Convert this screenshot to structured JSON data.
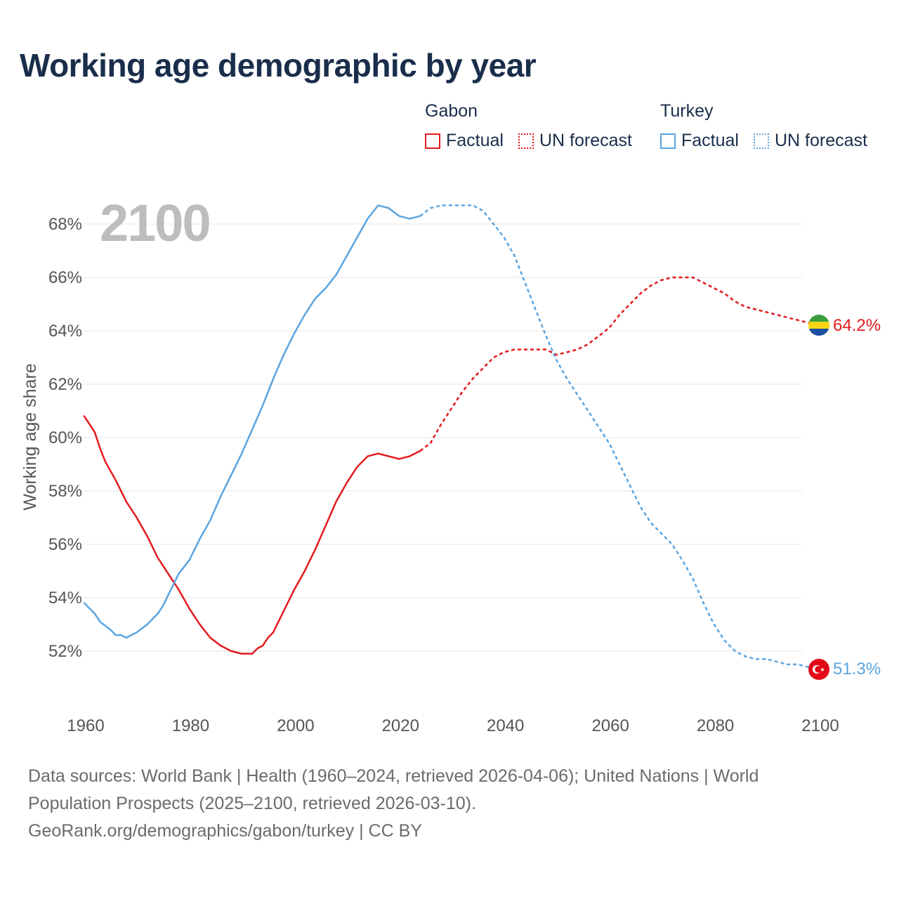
{
  "title": "Working age demographic by year",
  "year_label": "2100",
  "legend": {
    "groups": [
      {
        "name": "Gabon",
        "color": "#e31a1c",
        "factual_label": "Factual",
        "forecast_label": "UN forecast"
      },
      {
        "name": "Turkey",
        "color": "#5aa4e0",
        "factual_label": "Factual",
        "forecast_label": "UN forecast"
      }
    ]
  },
  "sources": {
    "line1": "Data sources: World Bank | Health (1960–2024, retrieved 2026-04-06); United Nations | World Population Prospects (2025–2100, retrieved 2026-03-10).",
    "line2": "GeoRank.org/demographics/gabon/turkey | CC BY"
  },
  "chart_data": {
    "type": "line",
    "title": "Working age demographic by year",
    "xlabel": "",
    "ylabel": "Working age share",
    "xlim": [
      1960,
      2100
    ],
    "ylim": [
      50.5,
      69.5
    ],
    "x_ticks": [
      1960,
      1980,
      2000,
      2020,
      2040,
      2060,
      2080,
      2100
    ],
    "y_ticks": [
      52,
      54,
      56,
      58,
      60,
      62,
      64,
      66,
      68
    ],
    "y_tick_labels": [
      "52%",
      "54%",
      "56%",
      "58%",
      "60%",
      "62%",
      "64%",
      "66%",
      "68%"
    ],
    "grid": true,
    "factual_end_year": 2024,
    "series": [
      {
        "name": "Gabon",
        "color": "#e31a1c",
        "end_label": "64.2%",
        "flag": "gabon-flag",
        "points": [
          [
            1960,
            60.8
          ],
          [
            1962,
            60.2
          ],
          [
            1963,
            59.6
          ],
          [
            1964,
            59.1
          ],
          [
            1966,
            58.4
          ],
          [
            1968,
            57.6
          ],
          [
            1970,
            57.0
          ],
          [
            1972,
            56.3
          ],
          [
            1974,
            55.5
          ],
          [
            1976,
            54.9
          ],
          [
            1978,
            54.3
          ],
          [
            1980,
            53.6
          ],
          [
            1982,
            53.0
          ],
          [
            1984,
            52.5
          ],
          [
            1986,
            52.2
          ],
          [
            1988,
            52.0
          ],
          [
            1990,
            51.9
          ],
          [
            1992,
            51.9
          ],
          [
            1993,
            52.1
          ],
          [
            1994,
            52.2
          ],
          [
            1995,
            52.5
          ],
          [
            1996,
            52.7
          ],
          [
            1998,
            53.5
          ],
          [
            2000,
            54.3
          ],
          [
            2002,
            55.0
          ],
          [
            2004,
            55.8
          ],
          [
            2006,
            56.7
          ],
          [
            2008,
            57.6
          ],
          [
            2010,
            58.3
          ],
          [
            2012,
            58.9
          ],
          [
            2014,
            59.3
          ],
          [
            2016,
            59.4
          ],
          [
            2018,
            59.3
          ],
          [
            2020,
            59.2
          ],
          [
            2022,
            59.3
          ],
          [
            2024,
            59.5
          ],
          [
            2026,
            59.8
          ],
          [
            2028,
            60.5
          ],
          [
            2030,
            61.1
          ],
          [
            2032,
            61.7
          ],
          [
            2034,
            62.2
          ],
          [
            2036,
            62.6
          ],
          [
            2038,
            63.0
          ],
          [
            2040,
            63.2
          ],
          [
            2042,
            63.3
          ],
          [
            2044,
            63.3
          ],
          [
            2046,
            63.3
          ],
          [
            2048,
            63.3
          ],
          [
            2050,
            63.1
          ],
          [
            2052,
            63.2
          ],
          [
            2054,
            63.3
          ],
          [
            2056,
            63.5
          ],
          [
            2058,
            63.8
          ],
          [
            2060,
            64.1
          ],
          [
            2062,
            64.6
          ],
          [
            2064,
            65.0
          ],
          [
            2066,
            65.4
          ],
          [
            2068,
            65.7
          ],
          [
            2070,
            65.9
          ],
          [
            2072,
            66.0
          ],
          [
            2074,
            66.0
          ],
          [
            2076,
            66.0
          ],
          [
            2078,
            65.8
          ],
          [
            2080,
            65.6
          ],
          [
            2082,
            65.4
          ],
          [
            2084,
            65.1
          ],
          [
            2086,
            64.9
          ],
          [
            2088,
            64.8
          ],
          [
            2090,
            64.7
          ],
          [
            2092,
            64.6
          ],
          [
            2094,
            64.5
          ],
          [
            2096,
            64.4
          ],
          [
            2098,
            64.3
          ],
          [
            2100,
            64.2
          ]
        ]
      },
      {
        "name": "Turkey",
        "color": "#5aa4e0",
        "end_label": "51.3%",
        "flag": "turkey-flag",
        "points": [
          [
            1960,
            53.8
          ],
          [
            1962,
            53.4
          ],
          [
            1963,
            53.1
          ],
          [
            1965,
            52.8
          ],
          [
            1966,
            52.6
          ],
          [
            1967,
            52.6
          ],
          [
            1968,
            52.5
          ],
          [
            1970,
            52.7
          ],
          [
            1972,
            53.0
          ],
          [
            1974,
            53.4
          ],
          [
            1975,
            53.7
          ],
          [
            1976,
            54.1
          ],
          [
            1978,
            54.9
          ],
          [
            1980,
            55.4
          ],
          [
            1982,
            56.2
          ],
          [
            1984,
            56.9
          ],
          [
            1986,
            57.8
          ],
          [
            1988,
            58.6
          ],
          [
            1990,
            59.4
          ],
          [
            1992,
            60.3
          ],
          [
            1994,
            61.2
          ],
          [
            1996,
            62.2
          ],
          [
            1998,
            63.1
          ],
          [
            2000,
            63.9
          ],
          [
            2002,
            64.6
          ],
          [
            2004,
            65.2
          ],
          [
            2006,
            65.6
          ],
          [
            2008,
            66.1
          ],
          [
            2010,
            66.8
          ],
          [
            2012,
            67.5
          ],
          [
            2014,
            68.2
          ],
          [
            2016,
            68.7
          ],
          [
            2018,
            68.6
          ],
          [
            2020,
            68.3
          ],
          [
            2022,
            68.2
          ],
          [
            2024,
            68.3
          ],
          [
            2026,
            68.6
          ],
          [
            2028,
            68.7
          ],
          [
            2030,
            68.7
          ],
          [
            2034,
            68.7
          ],
          [
            2036,
            68.5
          ],
          [
            2038,
            68.0
          ],
          [
            2040,
            67.5
          ],
          [
            2042,
            66.8
          ],
          [
            2044,
            65.8
          ],
          [
            2046,
            64.8
          ],
          [
            2048,
            63.8
          ],
          [
            2050,
            62.9
          ],
          [
            2052,
            62.2
          ],
          [
            2054,
            61.6
          ],
          [
            2056,
            61.0
          ],
          [
            2058,
            60.4
          ],
          [
            2060,
            59.8
          ],
          [
            2062,
            59.0
          ],
          [
            2064,
            58.2
          ],
          [
            2066,
            57.4
          ],
          [
            2068,
            56.8
          ],
          [
            2070,
            56.4
          ],
          [
            2072,
            56.0
          ],
          [
            2074,
            55.4
          ],
          [
            2076,
            54.7
          ],
          [
            2078,
            53.8
          ],
          [
            2080,
            53.0
          ],
          [
            2082,
            52.4
          ],
          [
            2084,
            52.0
          ],
          [
            2086,
            51.8
          ],
          [
            2088,
            51.7
          ],
          [
            2090,
            51.7
          ],
          [
            2092,
            51.6
          ],
          [
            2094,
            51.5
          ],
          [
            2096,
            51.5
          ],
          [
            2098,
            51.4
          ],
          [
            2100,
            51.3
          ]
        ]
      }
    ]
  }
}
